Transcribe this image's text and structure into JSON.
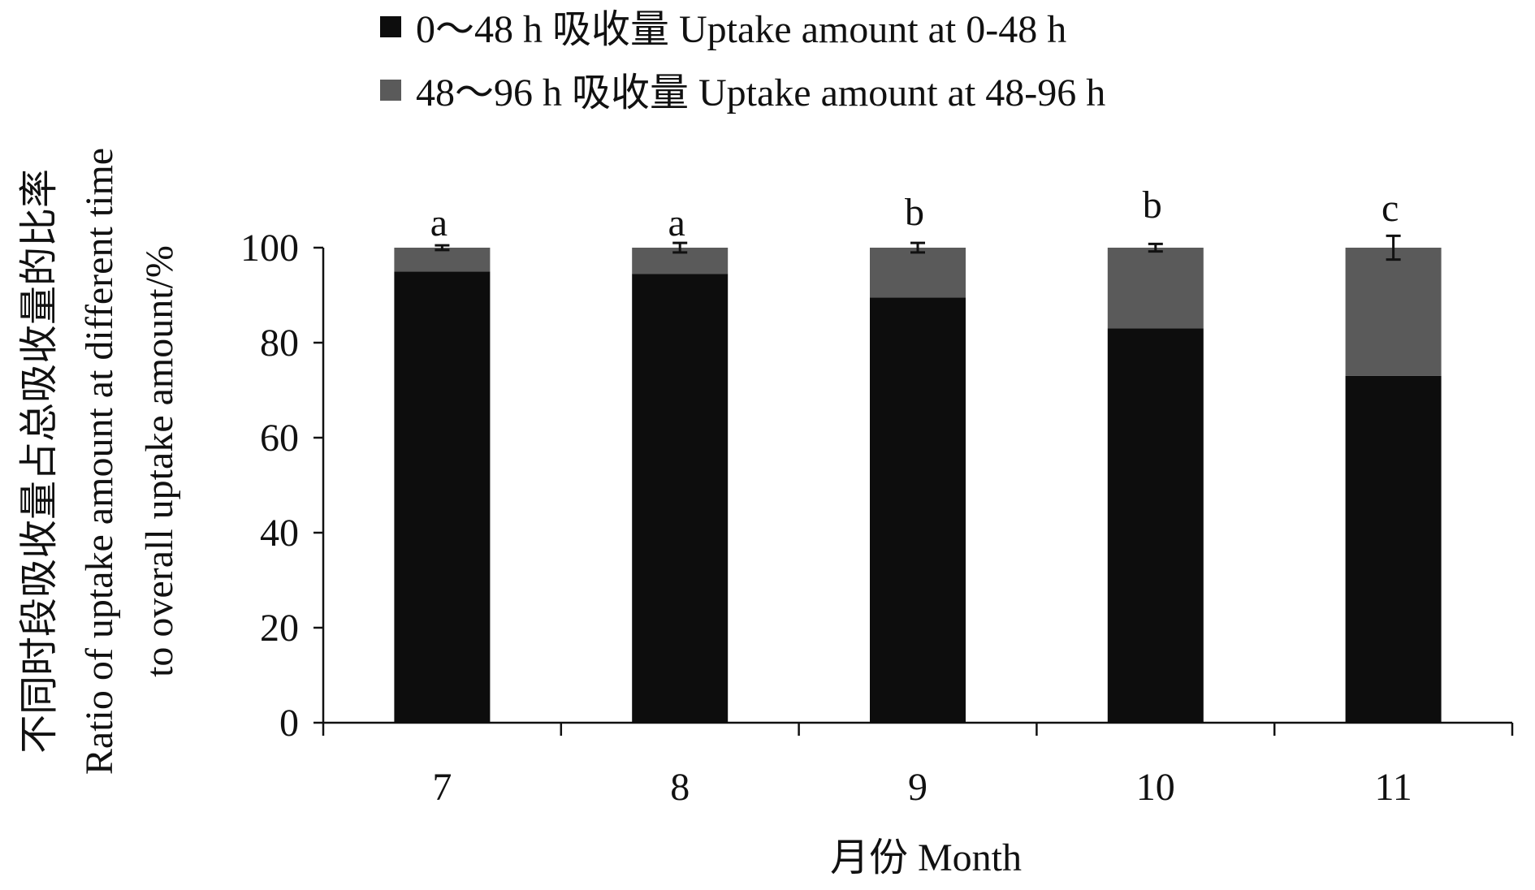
{
  "chart_data": {
    "type": "bar",
    "stacked": true,
    "categories": [
      "7",
      "8",
      "9",
      "10",
      "11"
    ],
    "series": [
      {
        "name": "0～48 h 吸收量 Uptake amount at 0-48 h",
        "color": "#0d0d0d",
        "values": [
          95,
          94.5,
          89.5,
          83,
          73
        ]
      },
      {
        "name": "48～96 h 吸收量 Uptake amount at 48-96 h",
        "color": "#5a5a5a",
        "values": [
          5,
          5.5,
          10.5,
          17,
          27
        ]
      }
    ],
    "error_bars": [
      0.5,
      1,
      1,
      0.8,
      2.5
    ],
    "significance_labels": [
      "a",
      "a",
      "b",
      "b",
      "c"
    ],
    "xlabel": "月份 Month",
    "ylabel_lines": [
      "不同时段吸收量占总吸收量的比率",
      "Ratio of uptake amount at different time",
      "to overall uptake amount/%"
    ],
    "ylim": [
      0,
      100
    ],
    "yticks": [
      0,
      20,
      40,
      60,
      80,
      100
    ],
    "grid": false,
    "legend_position": "top-center"
  }
}
